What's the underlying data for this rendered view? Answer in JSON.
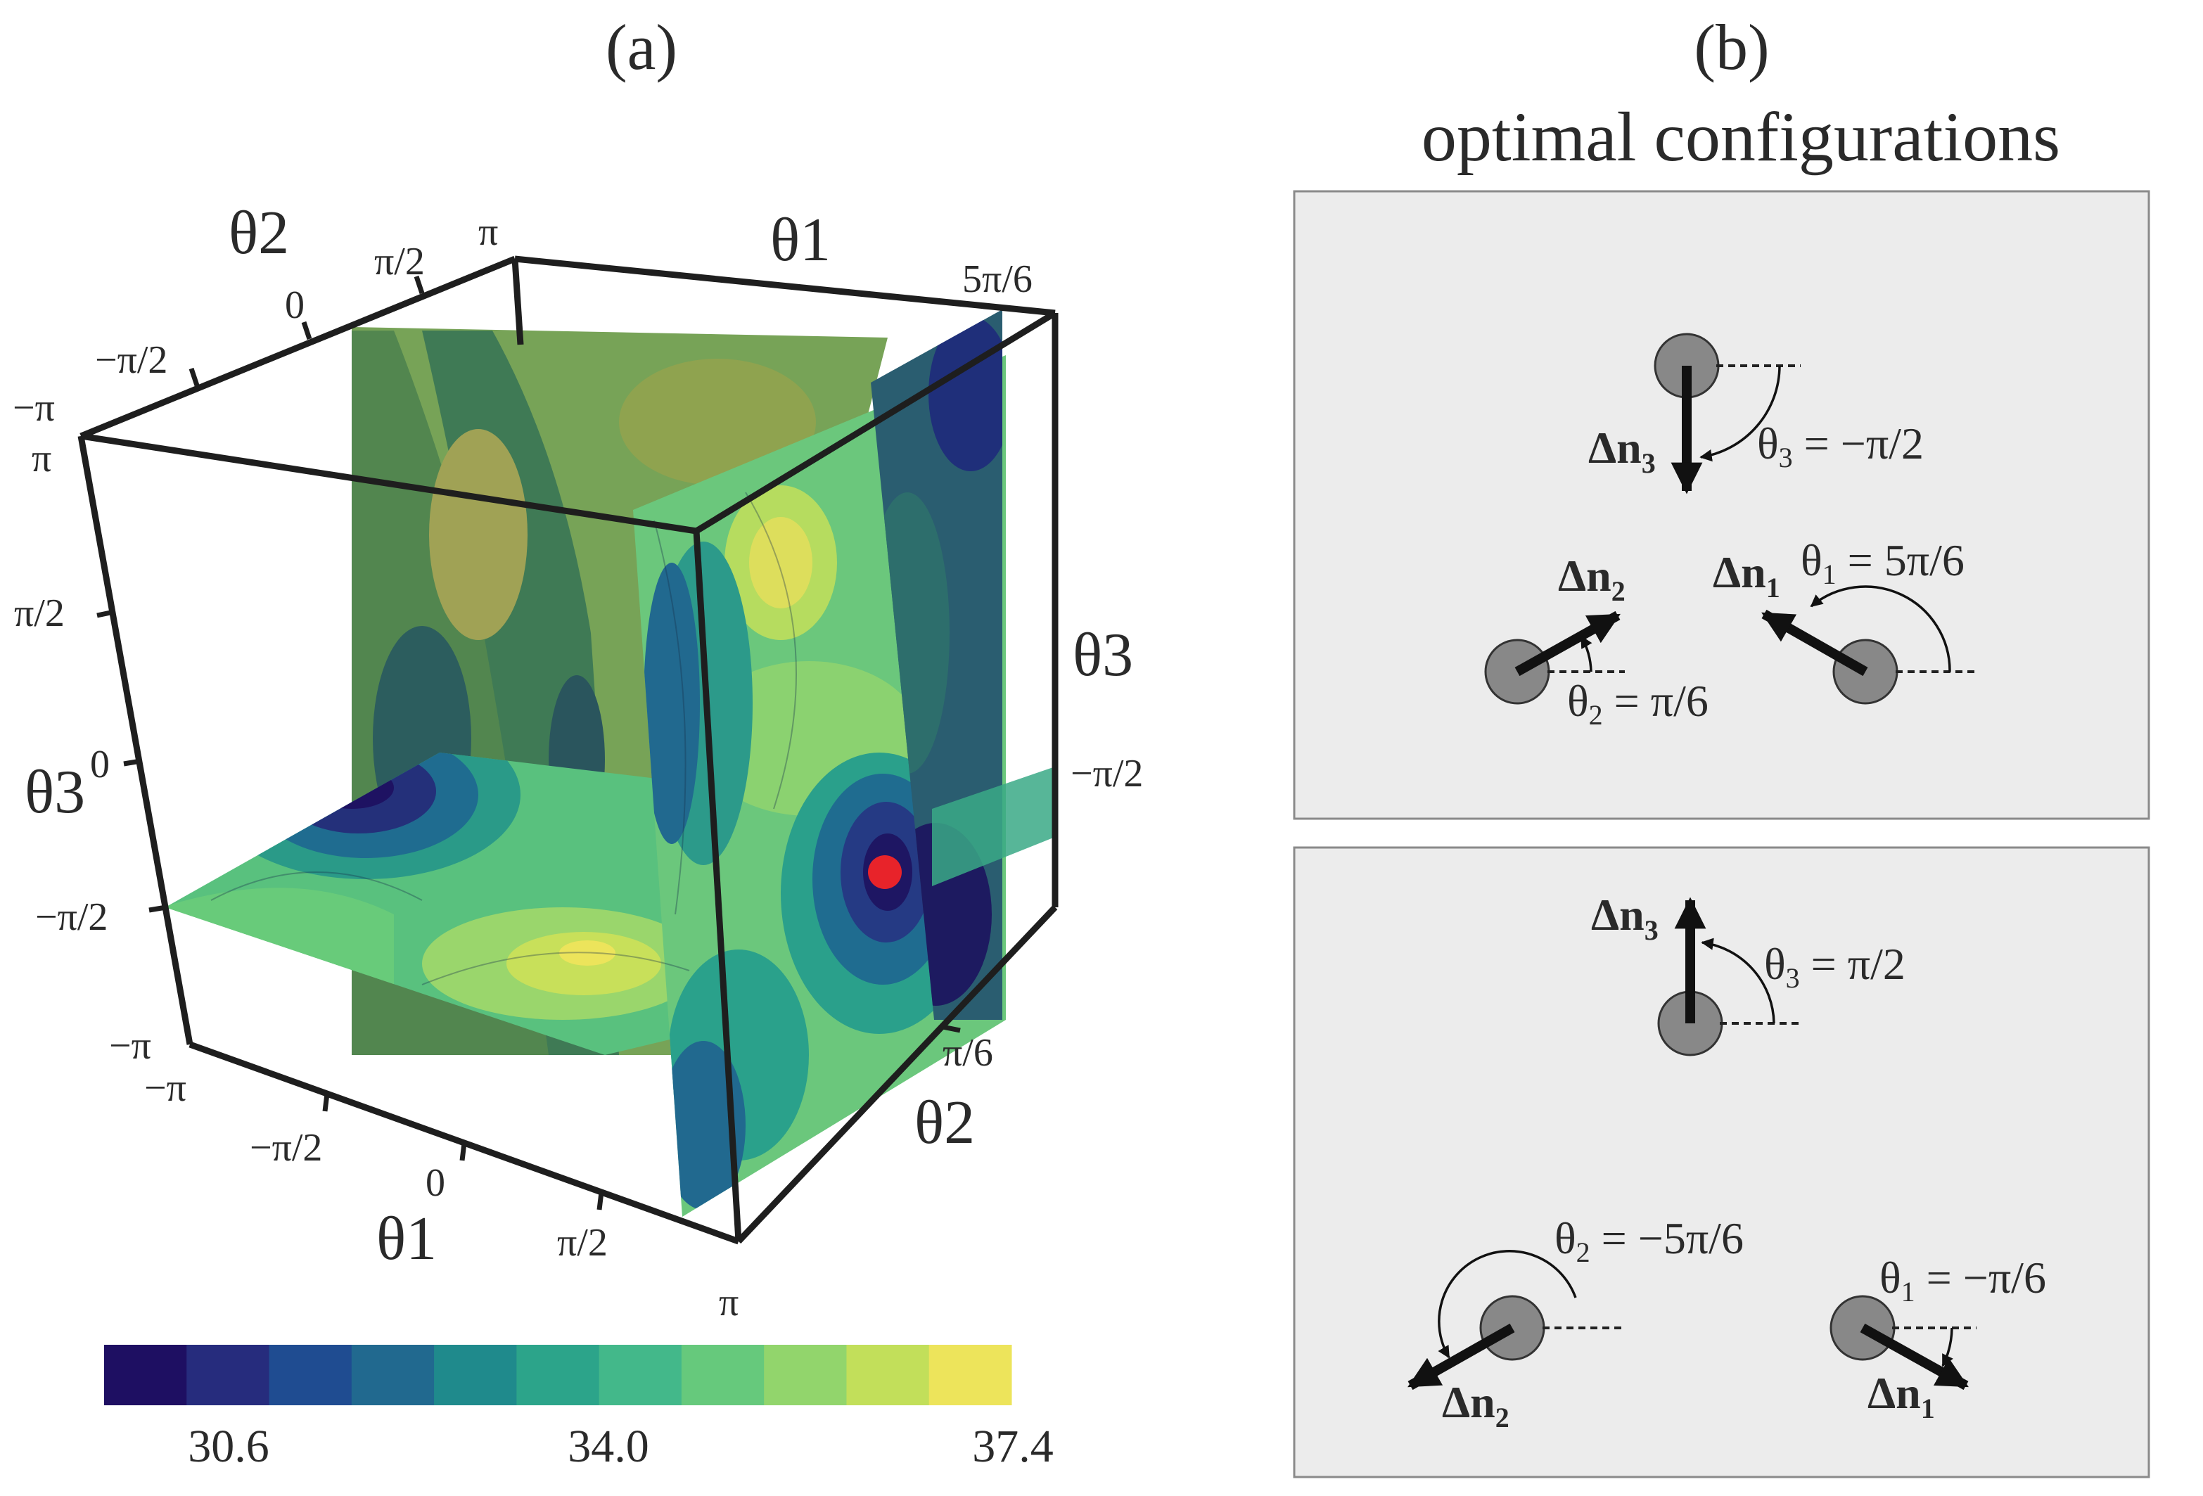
{
  "panel_a": {
    "label": "(a)",
    "axes": {
      "theta1_label": "θ1",
      "theta2_label": "θ2",
      "theta3_label": "θ3",
      "theta1_ticks": [
        "−π",
        "−π/2",
        "0",
        "π/2",
        "π"
      ],
      "theta2_ticks": [
        "−π",
        "−π/2",
        "0",
        "π/2",
        "π"
      ],
      "theta3_ticks": [
        "−π",
        "−π/2",
        "0",
        "π/2",
        "π"
      ],
      "slice_theta1": "5π/6",
      "slice_theta2": "π/6",
      "slice_theta3": "−π/2"
    },
    "colorbar": {
      "min": 28.9,
      "max": 37.4,
      "tick_labels": [
        "30.6",
        "34.0",
        "37.4"
      ],
      "colors": [
        "#1e0f62",
        "#262c7d",
        "#1f4c91",
        "#21698f",
        "#1f8a8c",
        "#2ca48a",
        "#43b88a",
        "#66c97c",
        "#92d56c",
        "#c2df5a",
        "#ede45b"
      ]
    },
    "optimum_marker_color": "#e8232a"
  },
  "panel_b": {
    "label": "(b)",
    "title": "optimal configurations",
    "title_color": "#e01f26",
    "config1": {
      "n3_label": "Δn",
      "n3_sub": "3",
      "theta3": "θ",
      "theta3_sub": "3",
      "theta3_value": " = −π/2",
      "n2_label": "Δn",
      "n2_sub": "2",
      "theta2": "θ",
      "theta2_sub": "2",
      "theta2_value": " = π/6",
      "n1_label": "Δn",
      "n1_sub": "1",
      "theta1": "θ",
      "theta1_sub": "1",
      "theta1_value": " = 5π/6"
    },
    "config2": {
      "n3_label": "Δn",
      "n3_sub": "3",
      "theta3": "θ",
      "theta3_sub": "3",
      "theta3_value": " = π/2",
      "n2_label": "Δn",
      "n2_sub": "2",
      "theta2": "θ",
      "theta2_sub": "2",
      "theta2_value": " = −5π/6",
      "n1_label": "Δn",
      "n1_sub": "1",
      "theta1": "θ",
      "theta1_sub": "1",
      "theta1_value": " = −π/6"
    }
  }
}
